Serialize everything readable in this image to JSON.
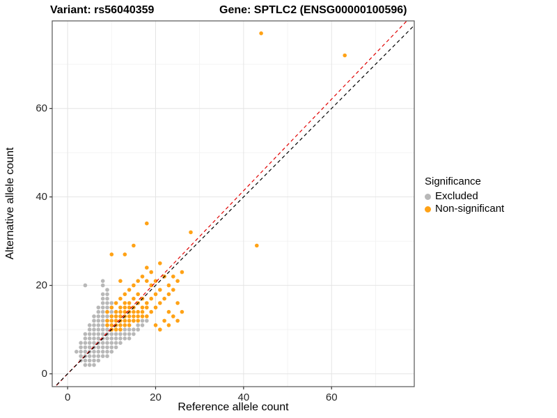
{
  "chart_data": {
    "type": "scatter",
    "titles": {
      "left": "Variant: rs56040359",
      "right": "Gene: SPTLC2 (ENSG00000100596)"
    },
    "xlabel": "Reference allele count",
    "ylabel": "Alternative allele count",
    "xlim": [
      -3.5,
      78.8
    ],
    "ylim": [
      -2.9,
      79.8
    ],
    "x_ticks": [
      0,
      20,
      40,
      60
    ],
    "y_ticks": [
      0,
      20,
      40,
      60
    ],
    "x_minor": [
      10,
      30,
      50,
      70
    ],
    "y_minor": [
      10,
      30,
      50,
      70
    ],
    "grid": true,
    "panel_border_color": "#555555",
    "grid_major_color": "#e4e4e4",
    "grid_minor_color": "#f2f2f2",
    "legend": {
      "title": "Significance",
      "position": "right",
      "entries": [
        {
          "label": "Excluded",
          "color": "#b8b8b8"
        },
        {
          "label": "Non-significant",
          "color": "#ffa216"
        }
      ]
    },
    "lines": [
      {
        "name": "fit-line",
        "slope": 1.035,
        "intercept": 0,
        "color": "#e00000",
        "dash": true
      },
      {
        "name": "identity-line",
        "slope": 1.0,
        "intercept": 0,
        "color": "#000000",
        "dash": true
      }
    ],
    "series": [
      {
        "name": "Excluded",
        "color": "#b8b8b8",
        "points": [
          [
            4,
            2
          ],
          [
            5,
            2
          ],
          [
            6,
            2
          ],
          [
            3,
            3
          ],
          [
            4,
            3
          ],
          [
            5,
            3
          ],
          [
            6,
            3
          ],
          [
            7,
            3
          ],
          [
            3,
            4
          ],
          [
            4,
            4
          ],
          [
            5,
            4
          ],
          [
            6,
            4
          ],
          [
            7,
            4
          ],
          [
            8,
            4
          ],
          [
            9,
            4
          ],
          [
            2,
            5
          ],
          [
            3,
            5
          ],
          [
            4,
            5
          ],
          [
            5,
            5
          ],
          [
            6,
            5
          ],
          [
            7,
            5
          ],
          [
            8,
            5
          ],
          [
            9,
            5
          ],
          [
            10,
            5
          ],
          [
            3,
            6
          ],
          [
            4,
            6
          ],
          [
            5,
            6
          ],
          [
            6,
            6
          ],
          [
            7,
            6
          ],
          [
            8,
            6
          ],
          [
            9,
            6
          ],
          [
            10,
            6
          ],
          [
            11,
            6
          ],
          [
            3,
            7
          ],
          [
            4,
            7
          ],
          [
            5,
            7
          ],
          [
            6,
            7
          ],
          [
            7,
            7
          ],
          [
            8,
            7
          ],
          [
            9,
            7
          ],
          [
            10,
            7
          ],
          [
            11,
            7
          ],
          [
            12,
            7
          ],
          [
            4,
            8
          ],
          [
            5,
            8
          ],
          [
            6,
            8
          ],
          [
            7,
            8
          ],
          [
            8,
            8
          ],
          [
            9,
            8
          ],
          [
            10,
            8
          ],
          [
            11,
            8
          ],
          [
            12,
            8
          ],
          [
            13,
            8
          ],
          [
            14,
            8
          ],
          [
            4,
            9
          ],
          [
            5,
            9
          ],
          [
            6,
            9
          ],
          [
            7,
            9
          ],
          [
            8,
            9
          ],
          [
            9,
            9
          ],
          [
            10,
            9
          ],
          [
            11,
            9
          ],
          [
            12,
            9
          ],
          [
            13,
            9
          ],
          [
            14,
            9
          ],
          [
            15,
            9
          ],
          [
            5,
            10
          ],
          [
            6,
            10
          ],
          [
            7,
            10
          ],
          [
            8,
            10
          ],
          [
            9,
            10
          ],
          [
            10,
            10
          ],
          [
            11,
            10
          ],
          [
            12,
            10
          ],
          [
            13,
            10
          ],
          [
            14,
            10
          ],
          [
            15,
            10
          ],
          [
            16,
            10
          ],
          [
            5,
            11
          ],
          [
            6,
            11
          ],
          [
            7,
            11
          ],
          [
            8,
            11
          ],
          [
            9,
            11
          ],
          [
            10,
            11
          ],
          [
            12,
            11
          ],
          [
            13,
            11
          ],
          [
            14,
            11
          ],
          [
            16,
            11
          ],
          [
            17,
            11
          ],
          [
            6,
            12
          ],
          [
            7,
            12
          ],
          [
            8,
            12
          ],
          [
            9,
            12
          ],
          [
            10,
            12
          ],
          [
            11,
            12
          ],
          [
            13,
            12
          ],
          [
            15,
            12
          ],
          [
            17,
            12
          ],
          [
            18,
            12
          ],
          [
            6,
            13
          ],
          [
            7,
            13
          ],
          [
            8,
            13
          ],
          [
            9,
            13
          ],
          [
            10,
            13
          ],
          [
            11,
            13
          ],
          [
            12,
            13
          ],
          [
            7,
            14
          ],
          [
            8,
            14
          ],
          [
            9,
            14
          ],
          [
            10,
            14
          ],
          [
            11,
            14
          ],
          [
            7,
            15
          ],
          [
            8,
            15
          ],
          [
            9,
            15
          ],
          [
            10,
            15
          ],
          [
            8,
            16
          ],
          [
            9,
            16
          ],
          [
            10,
            16
          ],
          [
            8,
            17
          ],
          [
            9,
            17
          ],
          [
            8,
            18
          ],
          [
            9,
            18
          ],
          [
            9,
            19
          ],
          [
            4,
            20
          ],
          [
            8,
            20
          ],
          [
            8,
            21
          ]
        ]
      },
      {
        "name": "Non-significant",
        "color": "#ffa216",
        "points": [
          [
            9,
            11
          ],
          [
            9,
            12
          ],
          [
            9,
            14
          ],
          [
            10,
            10
          ],
          [
            10,
            11
          ],
          [
            10,
            12
          ],
          [
            10,
            13
          ],
          [
            10,
            15
          ],
          [
            10,
            27
          ],
          [
            11,
            10
          ],
          [
            11,
            11
          ],
          [
            11,
            12
          ],
          [
            11,
            13
          ],
          [
            11,
            14
          ],
          [
            11,
            16
          ],
          [
            12,
            10
          ],
          [
            12,
            11
          ],
          [
            12,
            12
          ],
          [
            12,
            13
          ],
          [
            12,
            14
          ],
          [
            12,
            15
          ],
          [
            12,
            17
          ],
          [
            12,
            21
          ],
          [
            13,
            11
          ],
          [
            13,
            12
          ],
          [
            13,
            13
          ],
          [
            13,
            14
          ],
          [
            13,
            15
          ],
          [
            13,
            16
          ],
          [
            13,
            18
          ],
          [
            13,
            27
          ],
          [
            14,
            11
          ],
          [
            14,
            12
          ],
          [
            14,
            13
          ],
          [
            14,
            14
          ],
          [
            14,
            15
          ],
          [
            14,
            16
          ],
          [
            14,
            19
          ],
          [
            15,
            12
          ],
          [
            15,
            13
          ],
          [
            15,
            14
          ],
          [
            15,
            15
          ],
          [
            15,
            17
          ],
          [
            15,
            20
          ],
          [
            15,
            29
          ],
          [
            16,
            12
          ],
          [
            16,
            13
          ],
          [
            16,
            14
          ],
          [
            16,
            16
          ],
          [
            16,
            18
          ],
          [
            16,
            21
          ],
          [
            17,
            13
          ],
          [
            17,
            14
          ],
          [
            17,
            15
          ],
          [
            17,
            17
          ],
          [
            17,
            22
          ],
          [
            18,
            13
          ],
          [
            18,
            15
          ],
          [
            18,
            16
          ],
          [
            18,
            21
          ],
          [
            18,
            24
          ],
          [
            18,
            34
          ],
          [
            19,
            14
          ],
          [
            19,
            17
          ],
          [
            19,
            20
          ],
          [
            19,
            23
          ],
          [
            20,
            11
          ],
          [
            20,
            15
          ],
          [
            20,
            18
          ],
          [
            20,
            21
          ],
          [
            21,
            10
          ],
          [
            21,
            16
          ],
          [
            21,
            19
          ],
          [
            21,
            25
          ],
          [
            22,
            12
          ],
          [
            22,
            17
          ],
          [
            22,
            22
          ],
          [
            23,
            11
          ],
          [
            23,
            14
          ],
          [
            23,
            18
          ],
          [
            23,
            20
          ],
          [
            24,
            13
          ],
          [
            24,
            19
          ],
          [
            24,
            22
          ],
          [
            25,
            12
          ],
          [
            25,
            16
          ],
          [
            25,
            21
          ],
          [
            26,
            14
          ],
          [
            26,
            23
          ],
          [
            28,
            32
          ],
          [
            43,
            29
          ],
          [
            44,
            77
          ],
          [
            63,
            72
          ]
        ]
      }
    ]
  }
}
